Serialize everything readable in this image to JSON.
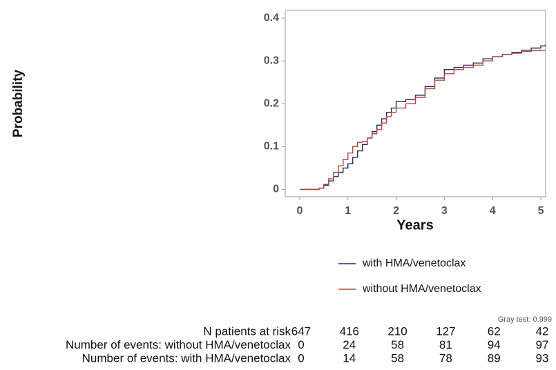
{
  "chart_data": {
    "type": "step",
    "x_label": "Years",
    "y_label": "Probability",
    "xlim": [
      -0.3,
      5.1
    ],
    "ylim": [
      -0.017,
      0.418
    ],
    "xticks": [
      0,
      1,
      2,
      3,
      4,
      5
    ],
    "yticks": [
      0,
      0.1,
      0.2,
      0.3,
      0.4
    ],
    "x": [
      0,
      0.4,
      0.5,
      0.6,
      0.7,
      0.8,
      0.9,
      1.0,
      1.1,
      1.2,
      1.3,
      1.4,
      1.5,
      1.6,
      1.7,
      1.8,
      1.9,
      2.0,
      2.2,
      2.4,
      2.6,
      2.8,
      3.0,
      3.2,
      3.4,
      3.6,
      3.8,
      4.0,
      4.2,
      4.4,
      4.6,
      4.8,
      5.0,
      5.1
    ],
    "series": [
      {
        "name": "with HMA/venetoclax",
        "color": "#1f2a6b",
        "values": [
          0,
          0.003,
          0.01,
          0.02,
          0.03,
          0.04,
          0.05,
          0.06,
          0.075,
          0.09,
          0.105,
          0.12,
          0.135,
          0.15,
          0.165,
          0.18,
          0.19,
          0.205,
          0.21,
          0.22,
          0.24,
          0.26,
          0.28,
          0.285,
          0.29,
          0.295,
          0.305,
          0.31,
          0.315,
          0.32,
          0.325,
          0.33,
          0.335,
          0.338
        ]
      },
      {
        "name": "without HMA/venetoclax",
        "color": "#b5453a",
        "values": [
          0,
          0.003,
          0.012,
          0.025,
          0.04,
          0.055,
          0.07,
          0.085,
          0.1,
          0.11,
          0.112,
          0.12,
          0.13,
          0.14,
          0.155,
          0.17,
          0.18,
          0.19,
          0.2,
          0.215,
          0.235,
          0.255,
          0.27,
          0.28,
          0.285,
          0.29,
          0.3,
          0.31,
          0.315,
          0.318,
          0.322,
          0.324,
          0.325,
          0.325
        ]
      }
    ],
    "annotation": "Gray test: 0.999",
    "risk_table": {
      "rows": [
        {
          "label": "N patients at risk",
          "values": [
            647,
            416,
            210,
            127,
            62,
            42
          ]
        },
        {
          "label": "Number of events: without HMA/venetoclax",
          "values": [
            0,
            24,
            58,
            81,
            94,
            97
          ]
        },
        {
          "label": "Number of events: with HMA/venetoclax",
          "values": [
            0,
            14,
            58,
            78,
            89,
            93
          ]
        }
      ]
    }
  }
}
